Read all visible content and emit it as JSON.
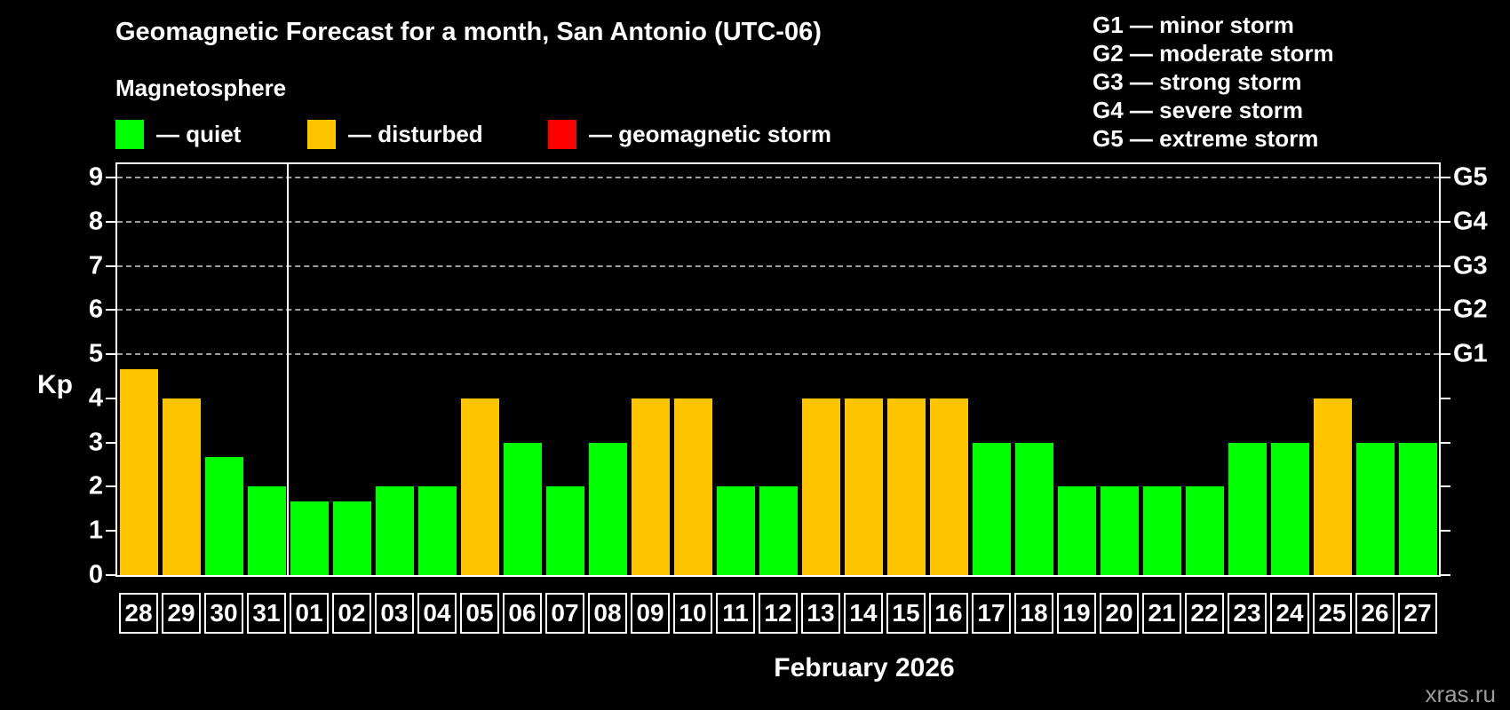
{
  "header": {
    "title": "Geomagnetic Forecast for a month, San Antonio (UTC-06)",
    "subtitle": "Magnetosphere"
  },
  "legend": {
    "items": [
      {
        "status": "quiet",
        "label": "— quiet",
        "color": "#00FF00"
      },
      {
        "status": "disturbed",
        "label": "— disturbed",
        "color": "#FFC400"
      },
      {
        "status": "storm",
        "label": "— geomagnetic storm",
        "color": "#FF0000"
      }
    ]
  },
  "g_scale_legend": {
    "items": [
      "G1 — minor storm",
      "G2 — moderate storm",
      "G3 — strong storm",
      "G4 — severe storm",
      "G5 — extreme storm"
    ]
  },
  "axis": {
    "kp_label": "Kp",
    "month_label": "February 2026"
  },
  "watermark": "xras.ru",
  "chart_data": {
    "type": "bar",
    "title": "Geomagnetic Forecast for a month, San Antonio (UTC-06)",
    "xlabel": "February 2026",
    "ylabel": "Kp",
    "ylim": [
      0,
      9.3
    ],
    "grid": "horizontal dashed gridlines at Kp 5-9 (G1-G5)",
    "legend_position": "top-left colors, top-right G-scale",
    "categories": [
      "28",
      "29",
      "30",
      "31",
      "01",
      "02",
      "03",
      "04",
      "05",
      "06",
      "07",
      "08",
      "09",
      "10",
      "11",
      "12",
      "13",
      "14",
      "15",
      "16",
      "17",
      "18",
      "19",
      "20",
      "21",
      "22",
      "23",
      "24",
      "25",
      "26",
      "27"
    ],
    "values": [
      4.67,
      4,
      2.67,
      2,
      1.67,
      1.67,
      2,
      2,
      4,
      3,
      2,
      3,
      4,
      4,
      2,
      2,
      4,
      4,
      4,
      4,
      3,
      3,
      2,
      2,
      2,
      2,
      3,
      3,
      4,
      3,
      3
    ],
    "statuses": [
      "disturbed",
      "disturbed",
      "quiet",
      "quiet",
      "quiet",
      "quiet",
      "quiet",
      "quiet",
      "disturbed",
      "quiet",
      "quiet",
      "quiet",
      "disturbed",
      "disturbed",
      "quiet",
      "quiet",
      "disturbed",
      "disturbed",
      "disturbed",
      "disturbed",
      "quiet",
      "quiet",
      "quiet",
      "quiet",
      "quiet",
      "quiet",
      "quiet",
      "quiet",
      "disturbed",
      "quiet",
      "quiet"
    ],
    "colors": {
      "quiet": "#00FF00",
      "disturbed": "#FFC400",
      "storm": "#FF0000"
    },
    "y_ticks_left": [
      "0",
      "1",
      "2",
      "3",
      "4",
      "5",
      "6",
      "7",
      "8",
      "9"
    ],
    "y_ticks_right": [
      {
        "label": "G1",
        "kp": 5
      },
      {
        "label": "G2",
        "kp": 6
      },
      {
        "label": "G3",
        "kp": 7
      },
      {
        "label": "G4",
        "kp": 8
      },
      {
        "label": "G5",
        "kp": 9
      }
    ],
    "month_separator_after_index": 3
  }
}
